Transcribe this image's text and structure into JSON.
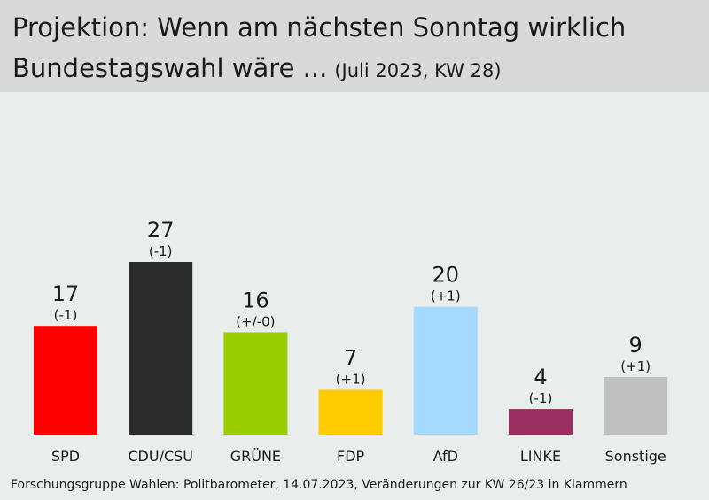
{
  "title": {
    "line1": "Projektion: Wenn am nächsten Sonntag wirklich",
    "line2": "Bundestagswahl wäre ...",
    "sub": "(Juli 2023, KW 28)"
  },
  "footer": "Forschungsgruppe Wahlen: Politbarometer, 14.07.2023, Veränderungen zur KW 26/23 in Klammern",
  "chart_data": {
    "type": "bar",
    "title": "Projektion: Wenn am nächsten Sonntag wirklich Bundestagswahl wäre ... (Juli 2023, KW 28)",
    "xlabel": "",
    "ylabel": "",
    "ylim": [
      0,
      27
    ],
    "grid": false,
    "categories": [
      "SPD",
      "CDU/CSU",
      "GRÜNE",
      "FDP",
      "AfD",
      "LINKE",
      "Sonstige"
    ],
    "values": [
      17,
      27,
      16,
      7,
      20,
      4,
      9
    ],
    "changes": [
      "(-1)",
      "(-1)",
      "(+/-0)",
      "(+1)",
      "(+1)",
      "(-1)",
      "(+1)"
    ],
    "colors": [
      "#ff0000",
      "#2b2b2b",
      "#9acd00",
      "#ffcc00",
      "#a6d9ff",
      "#9b2f62",
      "#c0c0c0"
    ]
  }
}
